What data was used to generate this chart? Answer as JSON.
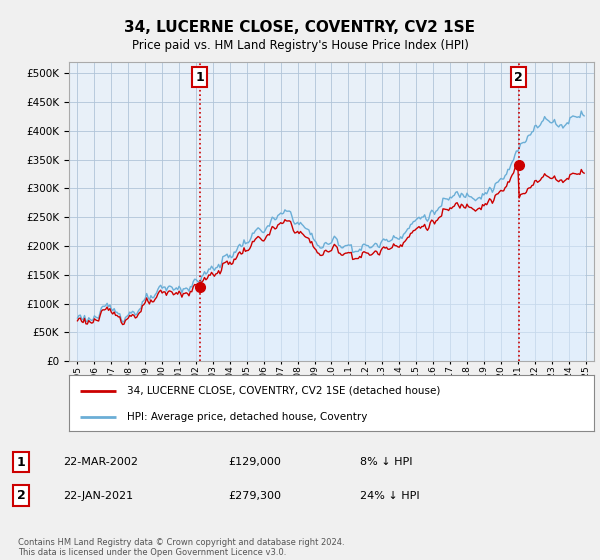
{
  "title": "34, LUCERNE CLOSE, COVENTRY, CV2 1SE",
  "subtitle": "Price paid vs. HM Land Registry's House Price Index (HPI)",
  "ytick_values": [
    0,
    50000,
    100000,
    150000,
    200000,
    250000,
    300000,
    350000,
    400000,
    450000,
    500000
  ],
  "ylim": [
    0,
    520000
  ],
  "xlim_start": 1994.5,
  "xlim_end": 2025.5,
  "hpi_color": "#6baed6",
  "hpi_fill_color": "#ddeeff",
  "price_color": "#cc0000",
  "vline_color": "#cc0000",
  "purchase1_year": 2002.22,
  "purchase1_price": 129000,
  "purchase1_label": "1",
  "purchase2_year": 2021.05,
  "purchase2_price": 279300,
  "purchase2_label": "2",
  "legend_label_red": "34, LUCERNE CLOSE, COVENTRY, CV2 1SE (detached house)",
  "legend_label_blue": "HPI: Average price, detached house, Coventry",
  "annotation1_num": "1",
  "annotation1_date": "22-MAR-2002",
  "annotation1_price": "£129,000",
  "annotation1_hpi": "8% ↓ HPI",
  "annotation2_num": "2",
  "annotation2_date": "22-JAN-2021",
  "annotation2_price": "£279,300",
  "annotation2_hpi": "24% ↓ HPI",
  "footnote": "Contains HM Land Registry data © Crown copyright and database right 2024.\nThis data is licensed under the Open Government Licence v3.0.",
  "background_color": "#f0f0f0",
  "plot_bg_color": "#e8f0f8",
  "grid_color": "#b0c4d8"
}
